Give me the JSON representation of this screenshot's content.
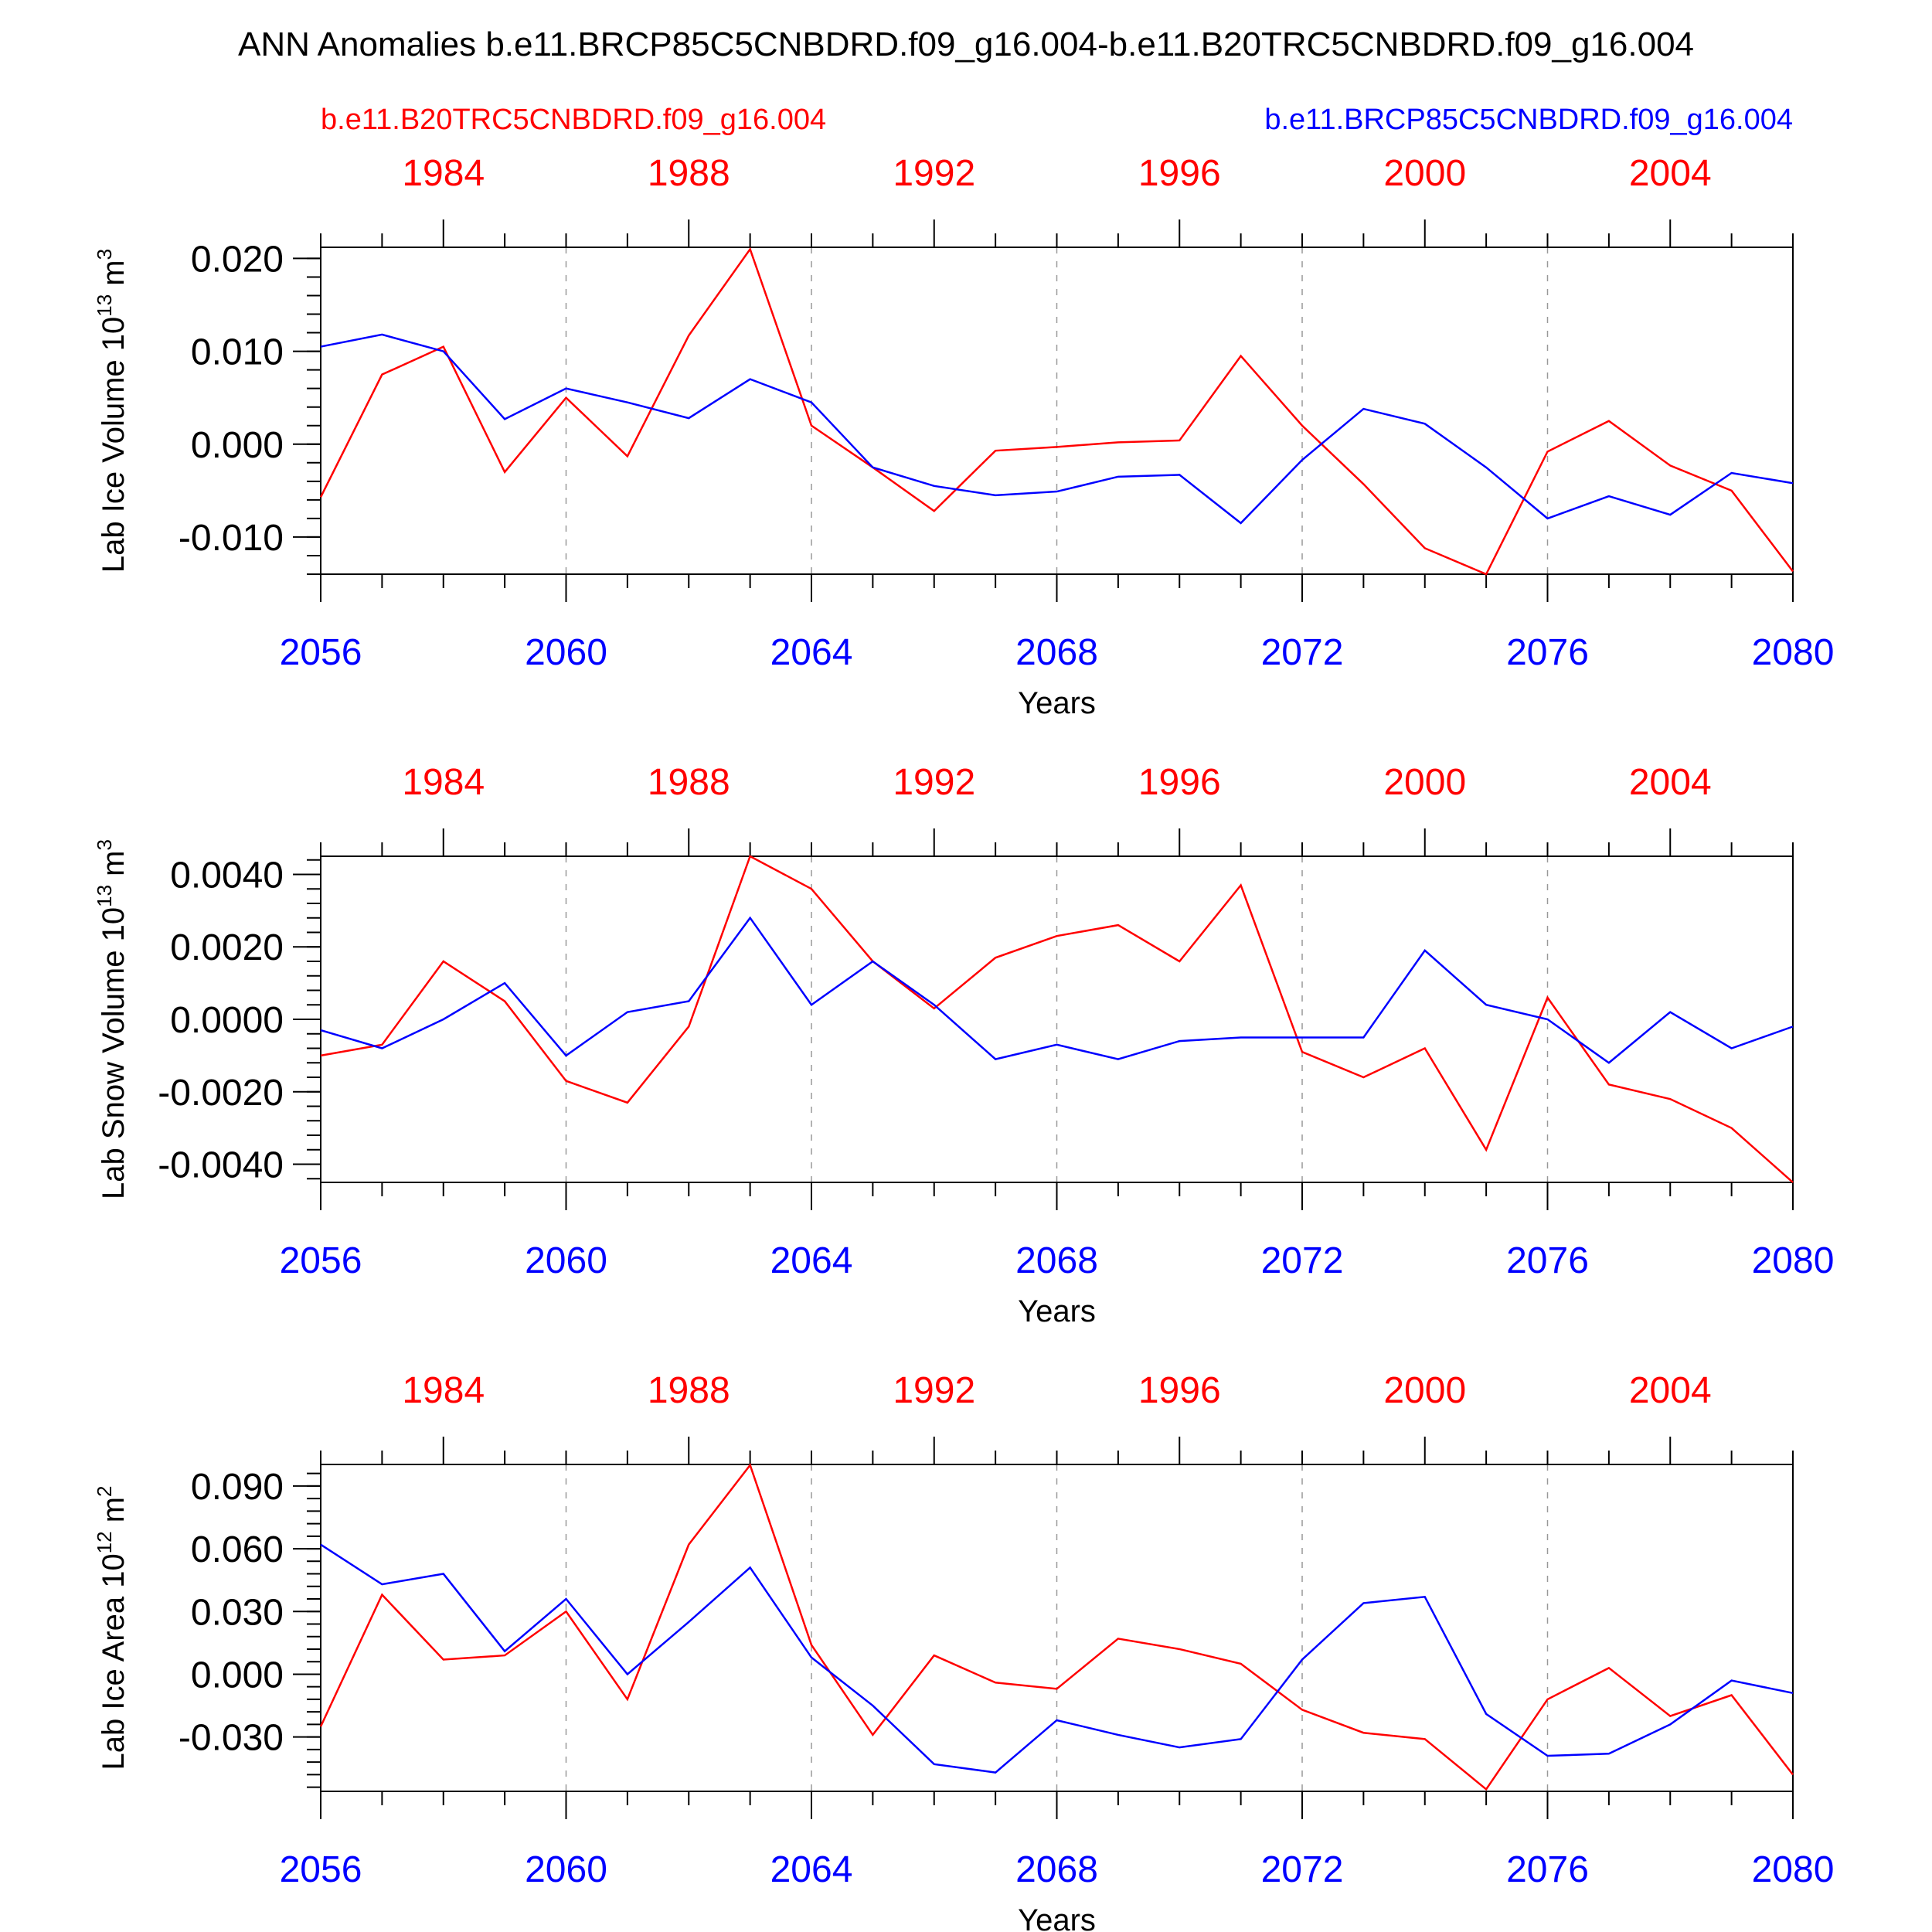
{
  "colors": {
    "ref": "#ff0000",
    "test": "#0000ff",
    "axis": "#000000",
    "grid": "#999999"
  },
  "title": "ANN Anomalies b.e11.BRCP85C5CNBDRD.f09_g16.004-b.e11.B20TRC5CNBDRD.f09_g16.004",
  "legend": {
    "ref_label": "b.e11.B20TRC5CNBDRD.f09_g16.004",
    "test_label": "b.e11.BRCP85C5CNBDRD.f09_g16.004"
  },
  "chart_data": [
    {
      "type": "line",
      "ylabel": "Lab Ice Volume 10",
      "ylabel_exp": "13",
      "ylabel_unit": "m",
      "ylabel_unit_exp": "3",
      "xlabel": "Years",
      "ylim": [
        -0.014,
        0.0212
      ],
      "yticks": [
        0.02,
        0.01,
        0.0,
        -0.01
      ],
      "ytick_labels": [
        "0.020",
        "0.010",
        "0.000",
        "-0.010"
      ],
      "bottom_x": [
        2056,
        2057,
        2058,
        2059,
        2060,
        2061,
        2062,
        2063,
        2064,
        2065,
        2066,
        2067,
        2068,
        2069,
        2070,
        2071,
        2072,
        2073,
        2074,
        2075,
        2076,
        2077,
        2078,
        2079,
        2080
      ],
      "bottom_tick_labels": [
        "2056",
        "2060",
        "2064",
        "2068",
        "2072",
        "2076",
        "2080"
      ],
      "top_tick_labels": [
        "1984",
        "1988",
        "1992",
        "1996",
        "2000",
        "2004"
      ],
      "series": [
        {
          "name": "b.e11.B20TRC5CNBDRD.f09_g16.004",
          "color": "#ff0000",
          "values": [
            -0.0057,
            0.0075,
            0.0105,
            -0.003,
            0.005,
            -0.0013,
            0.0117,
            0.021,
            0.002,
            -0.0025,
            -0.0072,
            -0.0007,
            -0.0003,
            0.0002,
            0.0004,
            0.0095,
            0.002,
            -0.0043,
            -0.0112,
            -0.014,
            -0.0008,
            0.0025,
            -0.0023,
            -0.005,
            -0.0137
          ]
        },
        {
          "name": "b.e11.BRCP85C5CNBDRD.f09_g16.004",
          "color": "#0000ff",
          "values": [
            0.0105,
            0.0118,
            0.01,
            0.0027,
            0.006,
            0.0045,
            0.0028,
            0.007,
            0.0045,
            -0.0025,
            -0.0045,
            -0.0055,
            -0.0051,
            -0.0035,
            -0.0033,
            -0.0085,
            -0.0017,
            0.0038,
            0.0022,
            -0.0025,
            -0.008,
            -0.0056,
            -0.0076,
            -0.0031,
            -0.0042
          ]
        }
      ]
    },
    {
      "type": "line",
      "ylabel": "Lab Snow Volume 10",
      "ylabel_exp": "13",
      "ylabel_unit": "m",
      "ylabel_unit_exp": "3",
      "xlabel": "Years",
      "ylim": [
        -0.0045,
        0.0045
      ],
      "yticks": [
        0.004,
        0.002,
        0.0,
        -0.002,
        -0.004
      ],
      "ytick_labels": [
        "0.0040",
        "0.0020",
        "0.0000",
        "-0.0020",
        "-0.0040"
      ],
      "bottom_x": [
        2056,
        2057,
        2058,
        2059,
        2060,
        2061,
        2062,
        2063,
        2064,
        2065,
        2066,
        2067,
        2068,
        2069,
        2070,
        2071,
        2072,
        2073,
        2074,
        2075,
        2076,
        2077,
        2078,
        2079,
        2080
      ],
      "bottom_tick_labels": [
        "2056",
        "2060",
        "2064",
        "2068",
        "2072",
        "2076",
        "2080"
      ],
      "top_tick_labels": [
        "1984",
        "1988",
        "1992",
        "1996",
        "2000",
        "2004"
      ],
      "series": [
        {
          "name": "b.e11.B20TRC5CNBDRD.f09_g16.004",
          "color": "#ff0000",
          "values": [
            -0.001,
            -0.0007,
            0.0016,
            0.0005,
            -0.0017,
            -0.0023,
            -0.0002,
            0.0045,
            0.0036,
            0.0016,
            0.0003,
            0.0017,
            0.0023,
            0.0026,
            0.0016,
            0.0037,
            -0.0009,
            -0.0016,
            -0.0008,
            -0.0036,
            0.0006,
            -0.0018,
            -0.0022,
            -0.003,
            -0.0045
          ]
        },
        {
          "name": "b.e11.BRCP85C5CNBDRD.f09_g16.004",
          "color": "#0000ff",
          "values": [
            -0.0003,
            -0.0008,
            0.0,
            0.001,
            -0.001,
            0.0002,
            0.0005,
            0.0028,
            0.0004,
            0.0016,
            0.0004,
            -0.0011,
            -0.0007,
            -0.0011,
            -0.0006,
            -0.0005,
            -0.0005,
            -0.0005,
            0.0019,
            0.0004,
            0.0,
            -0.0012,
            0.0002,
            -0.0008,
            -0.0002
          ]
        }
      ]
    },
    {
      "type": "line",
      "ylabel": "Lab Ice Area 10",
      "ylabel_exp": "12",
      "ylabel_unit": "m",
      "ylabel_unit_exp": "2",
      "xlabel": "Years",
      "ylim": [
        -0.056,
        0.1003
      ],
      "yticks": [
        0.09,
        0.06,
        0.03,
        0.0,
        -0.03
      ],
      "ytick_labels": [
        "0.090",
        "0.060",
        "0.030",
        "0.000",
        "-0.030"
      ],
      "bottom_x": [
        2056,
        2057,
        2058,
        2059,
        2060,
        2061,
        2062,
        2063,
        2064,
        2065,
        2066,
        2067,
        2068,
        2069,
        2070,
        2071,
        2072,
        2073,
        2074,
        2075,
        2076,
        2077,
        2078,
        2079,
        2080
      ],
      "bottom_tick_labels": [
        "2056",
        "2060",
        "2064",
        "2068",
        "2072",
        "2076",
        "2080"
      ],
      "top_tick_labels": [
        "1984",
        "1988",
        "1992",
        "1996",
        "2000",
        "2004"
      ],
      "series": [
        {
          "name": "b.e11.B20TRC5CNBDRD.f09_g16.004",
          "color": "#ff0000",
          "values": [
            -0.025,
            0.038,
            0.007,
            0.009,
            0.03,
            -0.012,
            0.062,
            0.1,
            0.014,
            -0.029,
            0.009,
            -0.004,
            -0.007,
            0.017,
            0.012,
            0.005,
            -0.017,
            -0.028,
            -0.031,
            -0.055,
            -0.012,
            0.003,
            -0.02,
            -0.01,
            -0.048
          ]
        },
        {
          "name": "b.e11.BRCP85C5CNBDRD.f09_g16.004",
          "color": "#0000ff",
          "values": [
            0.062,
            0.043,
            0.048,
            0.011,
            0.036,
            0.0,
            0.025,
            0.051,
            0.008,
            -0.015,
            -0.043,
            -0.047,
            -0.022,
            -0.029,
            -0.035,
            -0.031,
            0.007,
            0.034,
            0.037,
            -0.019,
            -0.039,
            -0.038,
            -0.024,
            -0.003,
            -0.009
          ]
        }
      ]
    }
  ]
}
